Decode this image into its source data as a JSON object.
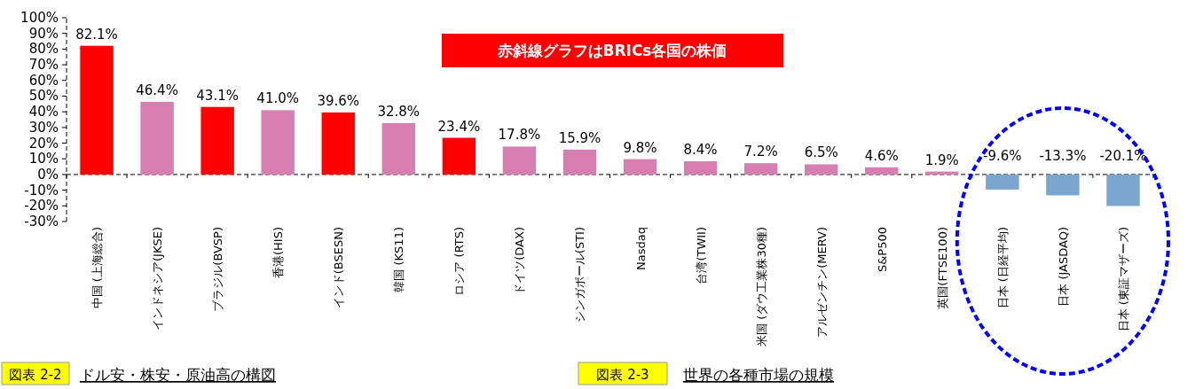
{
  "chart_data": {
    "type": "bar",
    "categories": [
      "中国 (上海総合)",
      "インドネシア(JKSE)",
      "ブラジル(BVSP)",
      "香港(HIS)",
      "インド(BSESN)",
      "韓国 (KS11)",
      "ロシア (RTS)",
      "ドイツ(DAX)",
      "シンガポール(STI)",
      "Nasdaq",
      "台湾(TWII)",
      "米国 (ダウ工業株30種)",
      "アルゼンチン(MERV)",
      "S&P500",
      "英国(FTSE100)",
      "日本 (日経平均)",
      "日本 (JASDAQ)",
      "日本 (東証マザーズ)"
    ],
    "values": [
      82.1,
      46.4,
      43.1,
      41.0,
      39.6,
      32.8,
      23.4,
      17.8,
      15.9,
      9.8,
      8.4,
      7.2,
      6.5,
      4.6,
      1.9,
      -9.6,
      -13.3,
      -20.1
    ],
    "value_labels": [
      "82.1%",
      "46.4%",
      "43.1%",
      "41.0%",
      "39.6%",
      "32.8%",
      "23.4%",
      "17.8%",
      "15.9%",
      "9.8%",
      "8.4%",
      "7.2%",
      "6.5%",
      "4.6%",
      "1.9%",
      "-9.6%",
      "-13.3%",
      "-20.1%"
    ],
    "colors": [
      "#ff0000",
      "#d67fb0",
      "#ff0000",
      "#d67fb0",
      "#ff0000",
      "#d67fb0",
      "#ff0000",
      "#d67fb0",
      "#d67fb0",
      "#d67fb0",
      "#d67fb0",
      "#d67fb0",
      "#d67fb0",
      "#d67fb0",
      "#d67fb0",
      "#7aa6cf",
      "#7aa6cf",
      "#7aa6cf"
    ],
    "ylim": [
      -30,
      100
    ],
    "yticks": [
      {
        "value": -30,
        "label": "-30%"
      },
      {
        "value": -20,
        "label": "-20%"
      },
      {
        "value": -10,
        "label": "-10%"
      },
      {
        "value": 0,
        "label": "0%"
      },
      {
        "value": 10,
        "label": "10%"
      },
      {
        "value": 20,
        "label": "20%"
      },
      {
        "value": 30,
        "label": "30%"
      },
      {
        "value": 40,
        "label": "40%"
      },
      {
        "value": 50,
        "label": "50%"
      },
      {
        "value": 60,
        "label": "60%"
      },
      {
        "value": 70,
        "label": "70%"
      },
      {
        "value": 80,
        "label": "80%"
      },
      {
        "value": 90,
        "label": "90%"
      },
      {
        "value": 100,
        "label": "100%"
      }
    ],
    "annotations": [
      "赤斜線グラフはBRICs各国の株価",
      "図表 2-2",
      "ドル安・株安・原油高の構図",
      "図表 2-3",
      "世界の各種市場の規模"
    ]
  }
}
